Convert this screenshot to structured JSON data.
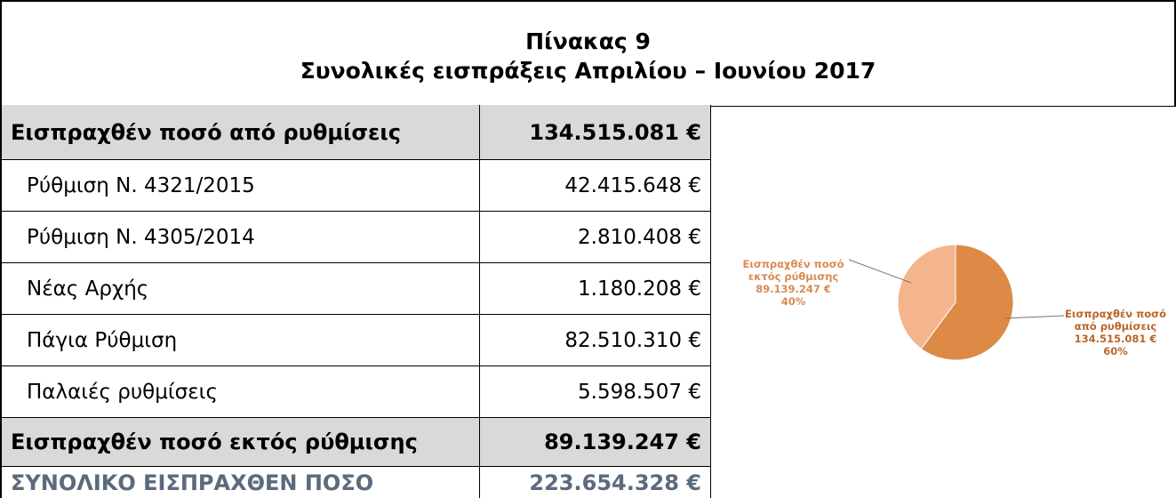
{
  "title": [
    "Πίνακας 9",
    "Συνολικές εισπράξεις Απριλίου – Ιουνίου 2017"
  ],
  "table": {
    "rows": [
      [
        "Εισπραχθέν ποσό από ρυθμίσεις",
        "134.515.081 €"
      ],
      [
        "Ρύθμιση Ν. 4321/2015",
        "42.415.648 €"
      ],
      [
        "Ρύθμιση Ν. 4305/2014",
        "2.810.408 €"
      ],
      [
        "Νέας Αρχής",
        "1.180.208 €"
      ],
      [
        "Πάγια Ρύθμιση",
        "82.510.310 €"
      ],
      [
        "Παλαιές ρυθμίσεις",
        "5.598.507 €"
      ],
      [
        "Εισπραχθέν ποσό εκτός ρύθμισης",
        "89.139.247 €"
      ],
      [
        "ΣΥΝΟΛΙΚΟ ΕΙΣΠΡΑΧΘΕΝ ΠΟΣΟ",
        "223.654.328 €"
      ]
    ]
  },
  "chart_data": {
    "type": "pie",
    "categories": [
      "Εισπραχθέν ποσό από ρυθμίσεις",
      "Εισπραχθέν ποσό εκτός ρύθμισης"
    ],
    "values": [
      134515081,
      89139247
    ],
    "value_labels": [
      "134.515.081 €",
      "89.139.247 €"
    ],
    "percent_labels": [
      "60%",
      "40%"
    ],
    "colors": [
      "#dd8a47",
      "#f4b58e"
    ],
    "label_colors": [
      "#b9652a",
      "#d98a55"
    ]
  }
}
